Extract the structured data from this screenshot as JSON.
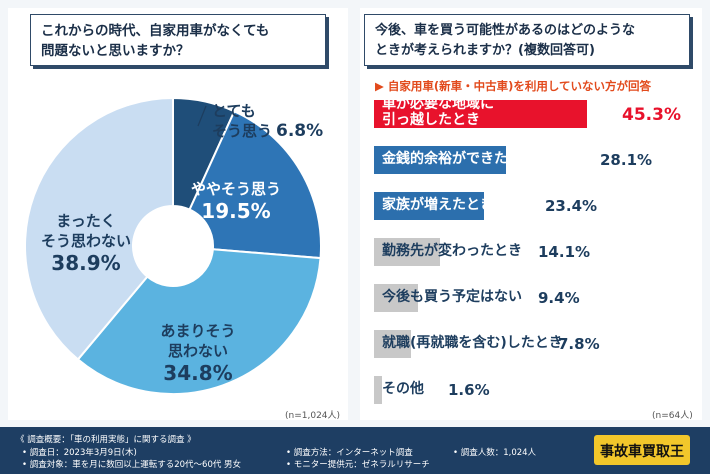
{
  "left": {
    "question": [
      "これからの時代、自家用車がなくても",
      "問題ないと思いますか？"
    ],
    "n_label": "(n=1,024人)"
  },
  "right": {
    "question": [
      "今後、車を買う可能性があるのはどのような",
      "ときが考えられますか？(複数回答可)"
    ],
    "sub_label": "▶ 自家用車(新車・中古車)を利用していない方が回答",
    "n_label": "(n=64人)"
  },
  "chart_data": [
    {
      "type": "pie",
      "categories": [
        "とても そう思う",
        "ややそう思う",
        "あまりそう 思わない",
        "まったく そう思わない"
      ],
      "values": [
        6.8,
        19.5,
        34.8,
        38.9
      ],
      "unit": "%",
      "colors": [
        "#1f4e79",
        "#2e75b6",
        "#5bb3e0",
        "#c9ddf2"
      ]
    },
    {
      "type": "bar",
      "categories": [
        "車が必要な地域に引っ越したとき",
        "金銭的余裕ができたとき",
        "家族が増えたとき",
        "勤務先が変わったとき",
        "今後も買う予定はない",
        "就職(再就職を含む)したとき",
        "その他"
      ],
      "values": [
        45.3,
        28.1,
        23.4,
        14.1,
        9.4,
        7.8,
        1.6
      ],
      "unit": "%",
      "colors": [
        "#e8122c",
        "#2c6fad",
        "#2c6fad",
        "#c8c8c8",
        "#c8c8c8",
        "#c8c8c8",
        "#c8c8c8"
      ]
    }
  ],
  "pie_labels": [
    {
      "line1": "とても",
      "line2": "そう思う",
      "value": "6.8%"
    },
    {
      "line1": "ややそう思う",
      "line2": "",
      "value": "19.5%"
    },
    {
      "line1": "あまりそう",
      "line2": "思わない",
      "value": "34.8%"
    },
    {
      "line1": "まったく",
      "line2": "そう思わない",
      "value": "38.9%"
    }
  ],
  "bar_labels": [
    {
      "line1": "車が必要な地域に",
      "line2": "引っ越したとき",
      "value": "45.3%"
    },
    {
      "line1": "金銭的余裕ができたとき",
      "line2": "",
      "value": "28.1%"
    },
    {
      "line1": "家族が増えたとき",
      "line2": "",
      "value": "23.4%"
    },
    {
      "line1": "勤務先が変わったとき",
      "line2": "",
      "value": "14.1%"
    },
    {
      "line1": "今後も買う予定はない",
      "line2": "",
      "value": "9.4%"
    },
    {
      "line1": "就職(再就職を含む)したとき",
      "line2": "",
      "value": "7.8%"
    },
    {
      "line1": "その他",
      "line2": "",
      "value": "1.6%"
    }
  ],
  "footer": {
    "survey_title": "《 調査概要：「車の利用実態」に関する調査 》",
    "survey_date": "• 調査日：2023年3月9日(木)",
    "survey_target": "• 調査対象：車を月に数回以上運転する20代〜60代 男女",
    "method": "• 調査方法：インターネット調査",
    "provider": "• モニター提供元：ゼネラルリサーチ",
    "count": "• 調査人数：1,024人",
    "logo_text": "事故車買取王"
  }
}
